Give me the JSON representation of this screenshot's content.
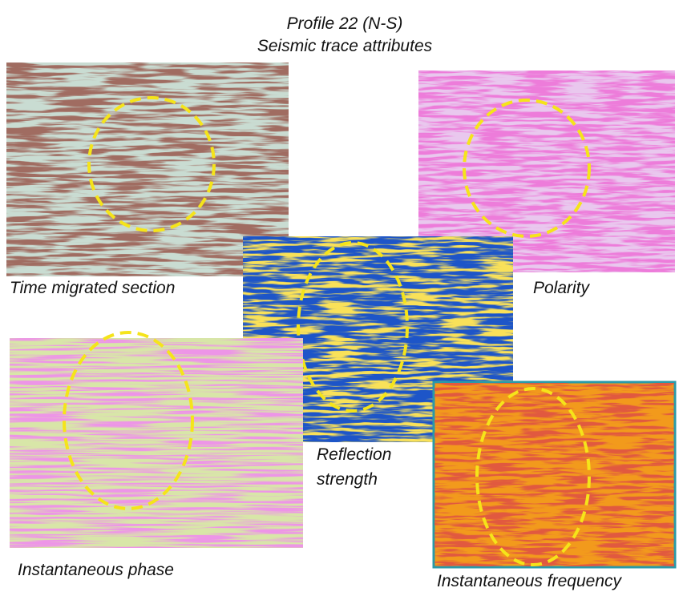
{
  "header": {
    "title": "Profile 22 (N-S)",
    "subtitle": "Seismic trace attributes"
  },
  "panels": [
    {
      "label_lines": [
        "Time migrated section"
      ]
    },
    {
      "label_lines": [
        "Polarity"
      ]
    },
    {
      "label_lines": [
        "Reflection",
        "strength"
      ]
    },
    {
      "label_lines": [
        "Instantaneous phase"
      ]
    },
    {
      "label_lines": [
        "Instantaneous frequency"
      ]
    }
  ]
}
